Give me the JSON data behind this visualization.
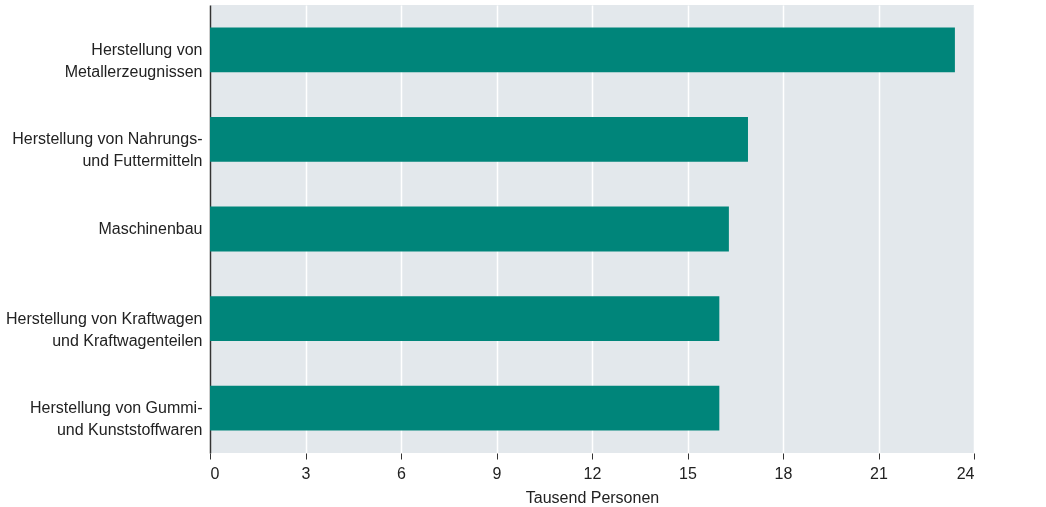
{
  "chart_data": {
    "type": "bar",
    "orientation": "horizontal",
    "xlabel": "Tausend Personen",
    "categories": [
      "Herstellung von\nMetallerzeugnissen",
      "Herstellung von Nahrungs-\nund Futtermitteln",
      "Maschinenbau",
      "Herstellung von Kraftwagen\nund Kraftwagenteilen",
      "Herstellung von Gummi-\nund Kunststoffwaren"
    ],
    "values": [
      23.4,
      16.9,
      16.3,
      16.0,
      16.0
    ],
    "color": "#00857a",
    "xlim": [
      0,
      24
    ],
    "xticks": [
      0,
      3,
      6,
      9,
      12,
      15,
      18,
      21,
      24
    ],
    "grid": "x"
  }
}
